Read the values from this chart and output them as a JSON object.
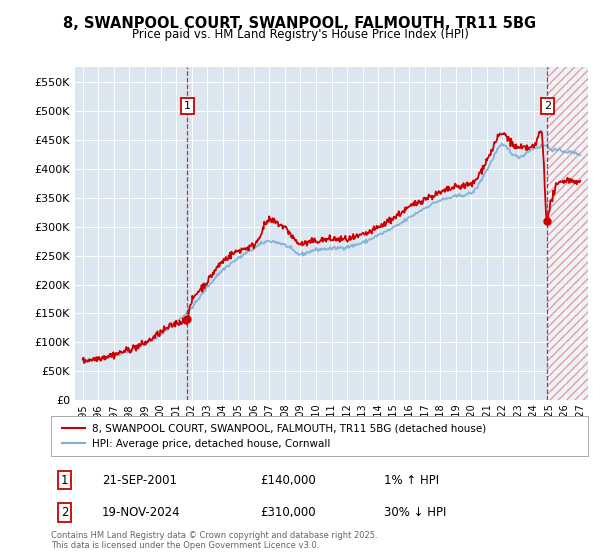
{
  "title_line1": "8, SWANPOOL COURT, SWANPOOL, FALMOUTH, TR11 5BG",
  "title_line2": "Price paid vs. HM Land Registry's House Price Index (HPI)",
  "legend_line1": "8, SWANPOOL COURT, SWANPOOL, FALMOUTH, TR11 5BG (detached house)",
  "legend_line2": "HPI: Average price, detached house, Cornwall",
  "footer": "Contains HM Land Registry data © Crown copyright and database right 2025.\nThis data is licensed under the Open Government Licence v3.0.",
  "hpi_color": "#7bafd4",
  "price_color": "#cc0000",
  "plot_bg_color": "#dce6f1",
  "ylim": [
    0,
    575000
  ],
  "ytick_max": 550000,
  "ytick_step": 50000,
  "xlim_start": 1994.5,
  "xlim_end": 2027.5,
  "purchase1_x": 2001.72,
  "purchase1_y": 140000,
  "purchase2_x": 2024.88,
  "purchase2_y": 310000,
  "annotation1_date": "21-SEP-2001",
  "annotation1_price": "£140,000",
  "annotation1_hpi": "1% ↑ HPI",
  "annotation2_date": "19-NOV-2024",
  "annotation2_price": "£310,000",
  "annotation2_hpi": "30% ↓ HPI"
}
